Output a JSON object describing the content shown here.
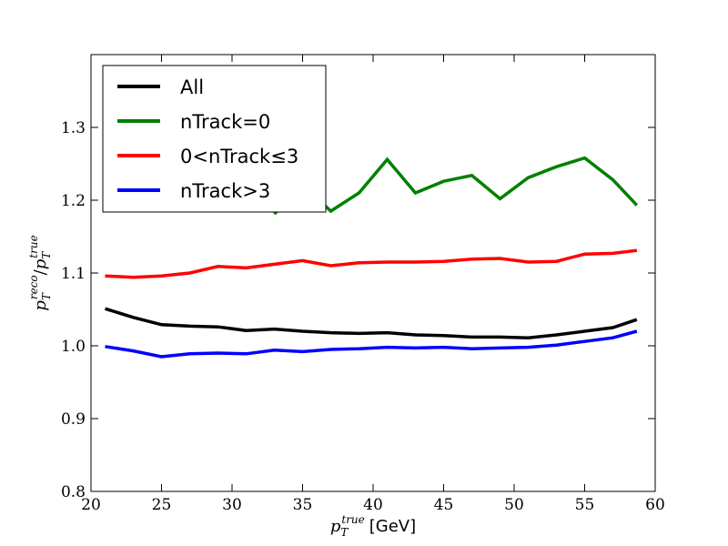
{
  "chart_data": {
    "type": "line",
    "title": "",
    "xlabel_math": "p_T^true",
    "xlabel_unit": "[GeV]",
    "ylabel": "p_T^reco/p_T^true",
    "xlim": [
      20,
      60
    ],
    "ylim": [
      0.8,
      1.4
    ],
    "x_ticks": [
      "20",
      "25",
      "30",
      "35",
      "40",
      "45",
      "50",
      "55",
      "60"
    ],
    "y_ticks": [
      "0.8",
      "0.9",
      "1.0",
      "1.1",
      "1.2",
      "1.3"
    ],
    "grid": false,
    "legend_position": "top-left",
    "x": [
      21,
      23,
      25,
      27,
      29,
      31,
      33,
      35,
      37,
      39,
      41,
      43,
      45,
      47,
      49,
      51,
      53,
      55,
      57,
      58.7
    ],
    "series": [
      {
        "name": "All",
        "color": "#000000",
        "values": [
          1.051,
          1.039,
          1.029,
          1.027,
          1.026,
          1.021,
          1.023,
          1.02,
          1.018,
          1.017,
          1.018,
          1.015,
          1.014,
          1.012,
          1.012,
          1.011,
          1.015,
          1.02,
          1.025,
          1.036
        ]
      },
      {
        "name": "nTrack=0",
        "color": "#008000",
        "values": [
          null,
          null,
          null,
          null,
          null,
          null,
          1.181,
          1.222,
          1.185,
          1.21,
          1.256,
          1.21,
          1.226,
          1.234,
          1.202,
          1.231,
          1.246,
          1.258,
          1.228,
          1.193
        ]
      },
      {
        "name": "0<nTrack≤3",
        "color": "#ff0000",
        "values": [
          1.096,
          1.094,
          1.096,
          1.1,
          1.109,
          1.107,
          1.112,
          1.117,
          1.11,
          1.114,
          1.115,
          1.115,
          1.116,
          1.119,
          1.12,
          1.115,
          1.116,
          1.126,
          1.127,
          1.131
        ]
      },
      {
        "name": "nTrack>3",
        "color": "#0000ff",
        "values": [
          0.999,
          0.993,
          0.985,
          0.989,
          0.99,
          0.989,
          0.994,
          0.992,
          0.995,
          0.996,
          0.998,
          0.997,
          0.998,
          0.996,
          0.997,
          0.998,
          1.001,
          1.006,
          1.011,
          1.02
        ]
      }
    ]
  }
}
